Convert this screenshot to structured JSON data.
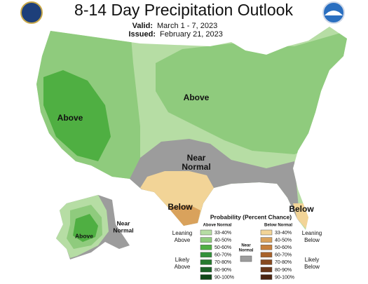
{
  "header": {
    "title": "8-14 Day Precipitation Outlook",
    "valid_label": "Valid:",
    "valid": "March 1 - 7, 2023",
    "issued_label": "Issued:",
    "issued": "February 21, 2023"
  },
  "map_labels": {
    "west": "Above",
    "east": "Above",
    "south": [
      "Near",
      "Normal"
    ],
    "texas": "Below",
    "florida": "Below",
    "alaska_west": "Above",
    "alaska_east": [
      "Near",
      "Normal"
    ]
  },
  "legend": {
    "title": "Probability (Percent Chance)",
    "above_header": "Above Normal",
    "below_header": "Below Normal",
    "near_header": [
      "Near",
      "Normal"
    ],
    "above_bins": [
      "33-40%",
      "40-50%",
      "50-60%",
      "60-70%",
      "70-80%",
      "80-90%",
      "90-100%"
    ],
    "below_bins": [
      "33-40%",
      "40-50%",
      "50-60%",
      "60-70%",
      "70-80%",
      "80-90%",
      "90-100%"
    ],
    "leaning_above": [
      "Leaning",
      "Above"
    ],
    "likely_above": [
      "Likely",
      "Above"
    ],
    "leaning_below": [
      "Leaning",
      "Below"
    ],
    "likely_below": [
      "Likely",
      "Below"
    ]
  }
}
